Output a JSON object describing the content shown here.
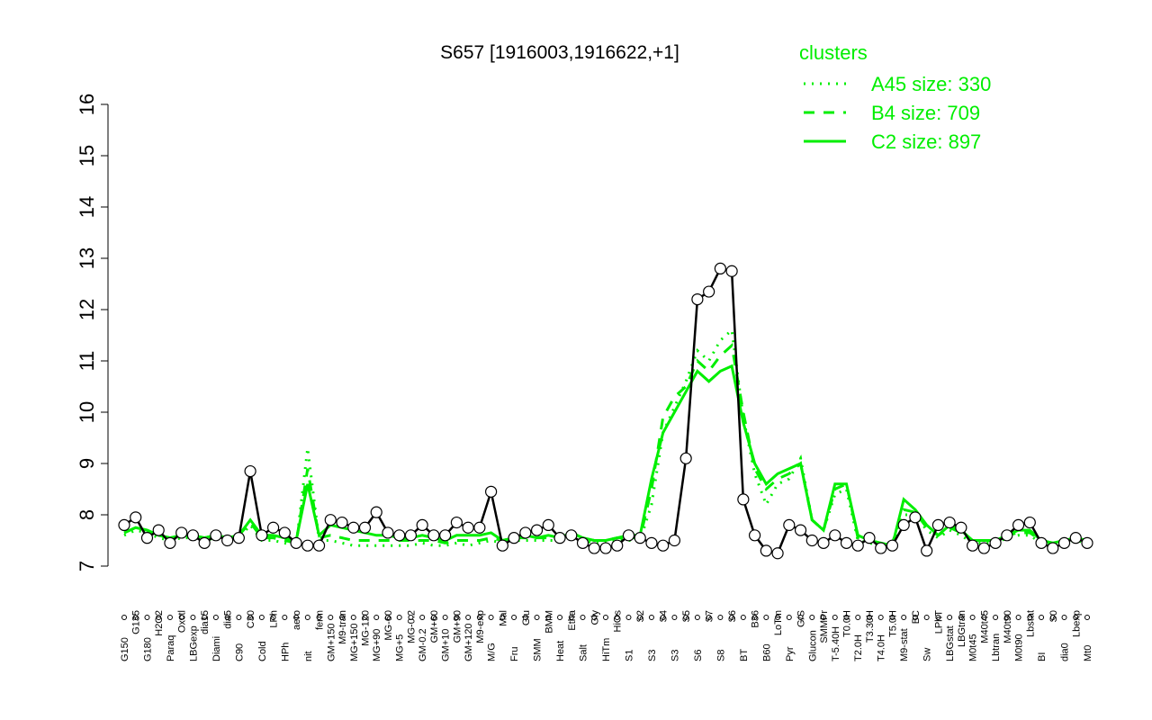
{
  "chart_data": {
    "type": "line",
    "title": "S657 [1916003,1916622,+1]",
    "legend_title": "clusters",
    "categories": [
      "G150",
      "G135",
      "G180",
      "H2O2",
      "Paraq",
      "Oxctl",
      "LBGexp",
      "dia15",
      "Diami",
      "dia5",
      "C90",
      "C30",
      "Cold",
      "LPh",
      "HPh",
      "aero",
      "nit",
      "ferm",
      "GM+150",
      "M9-tran",
      "MG+150",
      "MG-120",
      "MG+90",
      "MG-60",
      "MG+5",
      "MG-0.2",
      "GM-0.2",
      "GM+60",
      "GM+10",
      "GM+90",
      "GM+120",
      "M9-exp",
      "M/G",
      "Mal",
      "Fru",
      "Glu",
      "SMM",
      "BMM",
      "Heat",
      "Etha",
      "Salt",
      "Gly",
      "HiTm",
      "HiOs",
      "S1",
      "S2",
      "S3",
      "S4",
      "S3",
      "S5",
      "S6",
      "S7",
      "S8",
      "S6",
      "BT",
      "B36",
      "B60",
      "LoTm",
      "Pyr",
      "G/S",
      "Glucon",
      "SMMPr",
      "T-5.40H",
      "T0.0H",
      "T2.0H",
      "T3.30H",
      "T4.0H",
      "T5.0H",
      "M9-stat",
      "BC",
      "Sw",
      "LPhT",
      "LBGstat",
      "LBGtran",
      "M0t45",
      "M40t45",
      "Lbtran",
      "M40t90",
      "M0t90",
      "Lbstat",
      "BI",
      "S0",
      "dia0",
      "Lbexp",
      "Mt0"
    ],
    "values": [
      7.8,
      7.95,
      7.55,
      7.7,
      7.45,
      7.65,
      7.6,
      7.45,
      7.6,
      7.5,
      7.55,
      8.85,
      7.6,
      7.75,
      7.65,
      7.45,
      7.4,
      7.4,
      7.9,
      7.85,
      7.75,
      7.75,
      8.05,
      7.65,
      7.6,
      7.6,
      7.8,
      7.6,
      7.6,
      7.85,
      7.75,
      7.75,
      8.45,
      7.4,
      7.55,
      7.65,
      7.7,
      7.8,
      7.55,
      7.6,
      7.45,
      7.35,
      7.35,
      7.4,
      7.6,
      7.55,
      7.45,
      7.4,
      7.5,
      9.1,
      12.2,
      12.35,
      12.8,
      12.75,
      8.3,
      7.6,
      7.3,
      7.25,
      7.8,
      7.7,
      7.5,
      7.45,
      7.6,
      7.45,
      7.4,
      7.55,
      7.35,
      7.4,
      7.8,
      7.95,
      7.3,
      7.8,
      7.85,
      7.75,
      7.4,
      7.35,
      7.45,
      7.6,
      7.8,
      7.85,
      7.45,
      7.35,
      7.45,
      7.55,
      7.45
    ],
    "color": "#000000",
    "series": [
      {
        "name": "A45 size: 330",
        "color": "#00ee00",
        "dash": "dotted",
        "values": [
          7.6,
          7.7,
          7.65,
          7.55,
          7.5,
          7.55,
          7.55,
          7.5,
          7.55,
          7.5,
          7.55,
          7.8,
          7.5,
          7.5,
          7.45,
          7.4,
          9.3,
          7.5,
          7.5,
          7.45,
          7.4,
          7.4,
          7.4,
          7.4,
          7.4,
          7.4,
          7.45,
          7.4,
          7.4,
          7.45,
          7.4,
          7.45,
          7.5,
          7.45,
          7.5,
          7.5,
          7.5,
          7.5,
          7.5,
          7.6,
          7.5,
          7.45,
          7.45,
          7.5,
          7.5,
          7.5,
          8.2,
          9.6,
          10.1,
          10.6,
          11.2,
          11.0,
          11.4,
          11.6,
          9.9,
          8.8,
          8.2,
          8.6,
          8.7,
          9.1,
          7.9,
          7.7,
          8.4,
          8.5,
          7.5,
          7.45,
          7.4,
          7.4,
          8.0,
          8.0,
          7.7,
          7.55,
          7.7,
          7.6,
          7.45,
          7.45,
          7.45,
          7.55,
          7.6,
          7.6,
          7.45,
          7.4,
          7.45,
          7.5,
          7.45
        ]
      },
      {
        "name": "B4 size: 709",
        "color": "#00ee00",
        "dash": "dashed",
        "values": [
          7.65,
          7.75,
          7.7,
          7.6,
          7.55,
          7.6,
          7.6,
          7.55,
          7.6,
          7.55,
          7.6,
          7.85,
          7.55,
          7.55,
          7.5,
          7.45,
          8.9,
          7.55,
          7.6,
          7.55,
          7.5,
          7.5,
          7.5,
          7.5,
          7.5,
          7.5,
          7.5,
          7.5,
          7.45,
          7.5,
          7.5,
          7.5,
          7.55,
          7.5,
          7.55,
          7.55,
          7.55,
          7.55,
          7.55,
          7.65,
          7.55,
          7.5,
          7.5,
          7.55,
          7.55,
          7.55,
          8.5,
          9.9,
          10.3,
          10.5,
          11.0,
          10.8,
          11.1,
          11.3,
          10.0,
          8.9,
          8.5,
          8.7,
          8.8,
          9.0,
          7.9,
          7.7,
          8.5,
          8.6,
          7.55,
          7.5,
          7.45,
          7.45,
          8.1,
          8.05,
          7.75,
          7.6,
          7.75,
          7.65,
          7.5,
          7.5,
          7.5,
          7.6,
          7.65,
          7.65,
          7.5,
          7.45,
          7.5,
          7.55,
          7.5
        ]
      },
      {
        "name": "C2 size: 897",
        "color": "#00ee00",
        "dash": "solid",
        "values": [
          7.65,
          7.75,
          7.7,
          7.6,
          7.55,
          7.6,
          7.6,
          7.55,
          7.6,
          7.55,
          7.6,
          7.9,
          7.6,
          7.6,
          7.55,
          7.5,
          8.6,
          7.6,
          7.8,
          7.75,
          7.7,
          7.65,
          7.6,
          7.6,
          7.55,
          7.55,
          7.6,
          7.55,
          7.5,
          7.6,
          7.6,
          7.6,
          7.65,
          7.5,
          7.55,
          7.6,
          7.55,
          7.6,
          7.55,
          7.65,
          7.55,
          7.5,
          7.5,
          7.55,
          7.6,
          7.6,
          8.7,
          9.6,
          10.0,
          10.4,
          10.8,
          10.6,
          10.8,
          10.9,
          9.8,
          9.0,
          8.6,
          8.8,
          8.9,
          9.0,
          7.9,
          7.7,
          8.6,
          8.6,
          7.6,
          7.5,
          7.45,
          7.4,
          8.3,
          8.1,
          7.8,
          7.6,
          7.8,
          7.7,
          7.5,
          7.5,
          7.5,
          7.6,
          7.7,
          7.7,
          7.5,
          7.45,
          7.5,
          7.55,
          7.5
        ]
      }
    ],
    "ylim": [
      7,
      16
    ],
    "yticks": [
      7,
      8,
      9,
      10,
      11,
      12,
      13,
      14,
      15,
      16
    ],
    "grid": false
  }
}
